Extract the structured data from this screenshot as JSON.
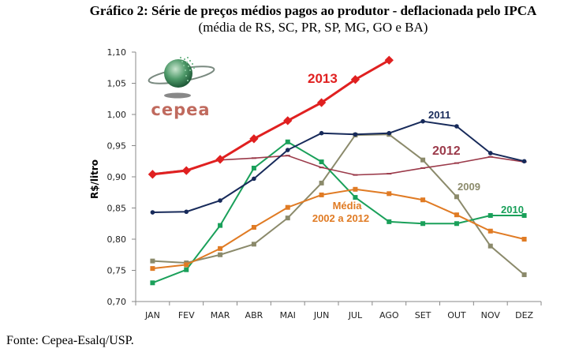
{
  "chart_data": {
    "type": "line",
    "title": "Gráfico 2: Série de preços médios pagos ao produtor - deflacionada pelo IPCA",
    "subtitle": "(média de RS, SC, PR, SP, MG, GO e BA)",
    "xlabel": "",
    "ylabel": "R$/litro",
    "ylim": [
      0.7,
      1.1
    ],
    "yticks": [
      "0,70",
      "0,75",
      "0,80",
      "0,85",
      "0,90",
      "0,95",
      "1,00",
      "1,05",
      "1,10"
    ],
    "ytick_values": [
      0.7,
      0.75,
      0.8,
      0.85,
      0.9,
      0.95,
      1.0,
      1.05,
      1.1
    ],
    "categories": [
      "JAN",
      "FEV",
      "MAR",
      "ABR",
      "MAI",
      "JUN",
      "JUL",
      "AGO",
      "SET",
      "OUT",
      "NOV",
      "DEZ"
    ],
    "grid": false,
    "series": [
      {
        "name": "2009",
        "label": "2009",
        "color": "#8b8a6b",
        "marker": "square",
        "values": [
          0.765,
          0.762,
          0.775,
          0.792,
          0.834,
          0.89,
          0.967,
          0.968,
          0.927,
          0.868,
          0.789,
          0.743
        ]
      },
      {
        "name": "2010",
        "label": "2010",
        "color": "#1aa05a",
        "marker": "square",
        "values": [
          0.73,
          0.751,
          0.822,
          0.914,
          0.956,
          0.924,
          0.867,
          0.828,
          0.825,
          0.825,
          0.838,
          0.838
        ]
      },
      {
        "name": "Média 2002 a 2012",
        "label": "Média",
        "label2": "2002 a 2012",
        "color": "#e07b24",
        "marker": "square",
        "values": [
          0.753,
          0.759,
          0.785,
          0.819,
          0.851,
          0.871,
          0.88,
          0.873,
          0.863,
          0.839,
          0.813,
          0.8
        ]
      },
      {
        "name": "2012",
        "label": "2012",
        "color": "#9b3a4a",
        "marker": "dash",
        "values": [
          0.905,
          0.911,
          0.927,
          0.93,
          0.934,
          0.915,
          0.903,
          0.905,
          0.914,
          0.922,
          0.932,
          0.924
        ]
      },
      {
        "name": "2011",
        "label": "2011",
        "color": "#172a5a",
        "marker": "circle",
        "values": [
          0.843,
          0.844,
          0.862,
          0.897,
          0.943,
          0.97,
          0.968,
          0.97,
          0.989,
          0.981,
          0.938,
          0.925
        ]
      },
      {
        "name": "2013",
        "label": "2013",
        "color": "#e02020",
        "marker": "diamond",
        "values": [
          0.904,
          0.91,
          0.928,
          0.961,
          0.99,
          1.019,
          1.056,
          1.087,
          null,
          null,
          null,
          null
        ]
      }
    ]
  },
  "logo": {
    "text": "cepea"
  },
  "source": "Fonte: Cepea-Esalq/USP."
}
